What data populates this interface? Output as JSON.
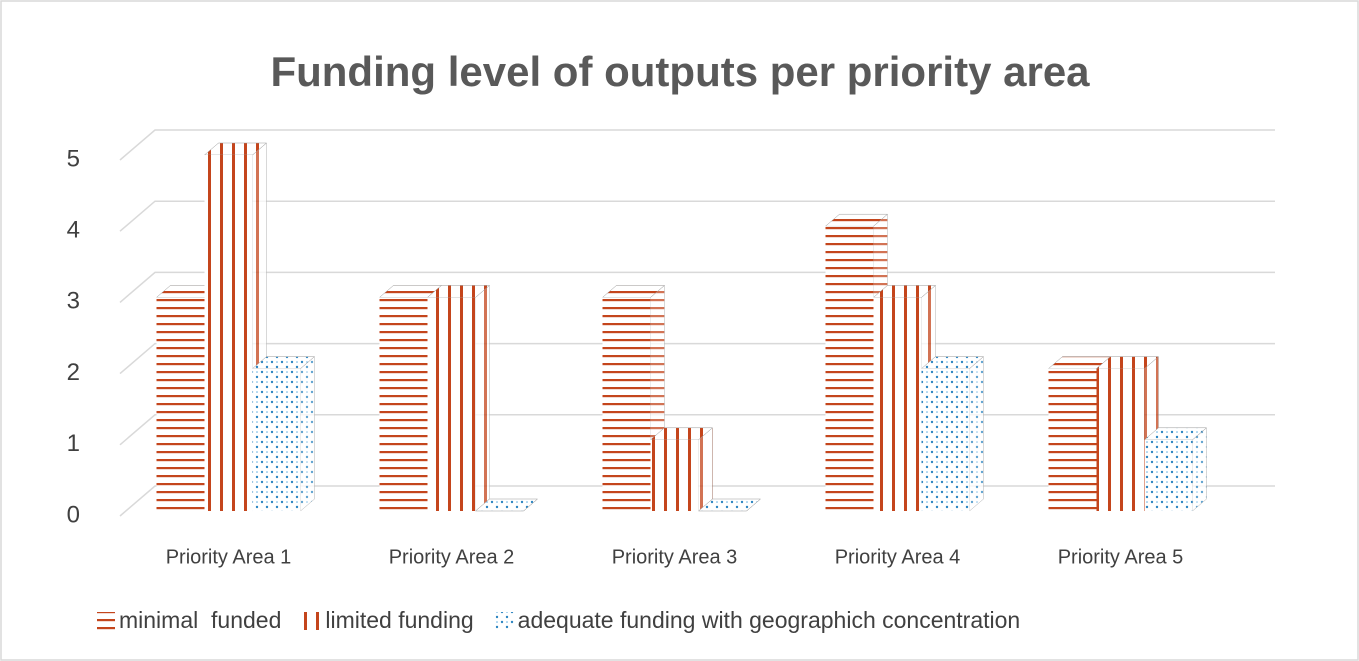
{
  "chart_data": {
    "type": "bar3d",
    "title": "Funding level of outputs per priority area",
    "categories": [
      "Priority Area 1",
      "Priority Area 2",
      "Priority Area 3",
      "Priority Area 4",
      "Priority Area 5"
    ],
    "series": [
      {
        "name": "minimal  funded",
        "color": "#c4451c",
        "pattern": "horizontal-lines",
        "values": [
          3,
          3,
          3,
          4,
          2
        ]
      },
      {
        "name": "limited funding",
        "color": "#c4451c",
        "pattern": "vertical-lines",
        "values": [
          5,
          3,
          1,
          3,
          2
        ]
      },
      {
        "name": "adequate funding with geographich concentration",
        "color": "#2e86c1",
        "pattern": "dots",
        "values": [
          2,
          0,
          0,
          2,
          1
        ]
      }
    ],
    "ylim": [
      0,
      5
    ],
    "yticks": [
      0,
      1,
      2,
      3,
      4,
      5
    ],
    "grid": true,
    "legend": "bottom"
  }
}
